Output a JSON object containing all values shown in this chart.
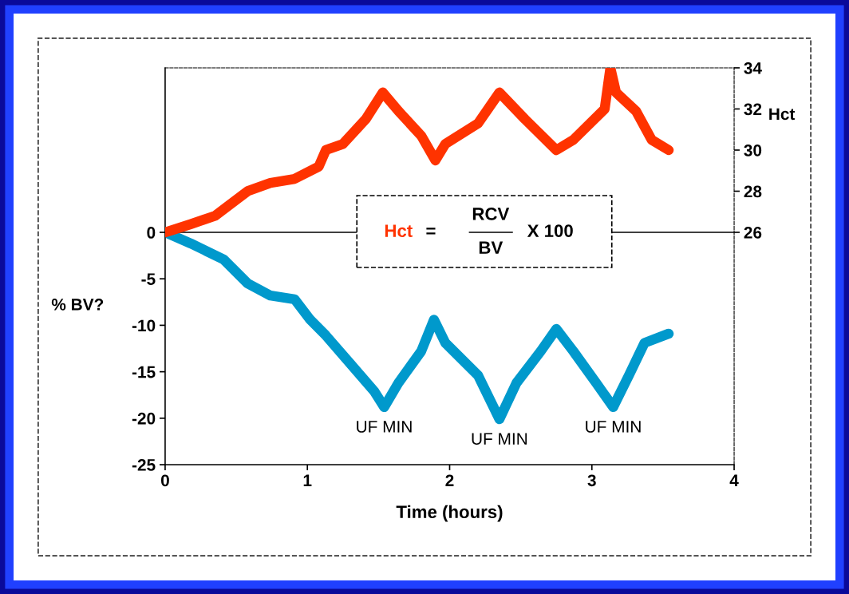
{
  "chart_data": {
    "type": "line",
    "xlabel": "Time (hours)",
    "ylabel": "% BV?",
    "y2label": "Hct",
    "xlim": [
      0,
      4
    ],
    "xticks": [
      0,
      1,
      2,
      3,
      4
    ],
    "ylim": [
      -25,
      17.7
    ],
    "yticks": [
      -25,
      -20,
      -15,
      -10,
      -5,
      0
    ],
    "y2lim": [
      14.7,
      34
    ],
    "y2ticks": [
      26,
      28,
      30,
      32,
      34
    ],
    "grid": false,
    "line_style": "solid",
    "ref_lines": [
      {
        "axis": "y",
        "value": 0,
        "color": "#000000"
      }
    ],
    "series": [
      {
        "color": "#ff3300",
        "axis": "y2",
        "x": [
          0,
          0.18,
          0.35,
          0.58,
          0.74,
          0.91,
          1.08,
          1.13,
          1.25,
          1.41,
          1.53,
          1.64,
          1.8,
          1.9,
          1.97,
          2.2,
          2.35,
          2.53,
          2.75,
          2.87,
          3.09,
          3.13,
          3.17,
          3.31,
          3.42,
          3.54
        ],
        "values": [
          26,
          26.4,
          26.8,
          28.0,
          28.4,
          28.6,
          29.2,
          30.0,
          30.3,
          31.5,
          32.8,
          31.9,
          30.7,
          29.5,
          30.3,
          31.3,
          32.8,
          31.5,
          30.0,
          30.5,
          32.0,
          34.0,
          32.8,
          31.9,
          30.5,
          30.0
        ]
      },
      {
        "color": "#0099cc",
        "axis": "y",
        "x": [
          0,
          0.18,
          0.41,
          0.58,
          0.74,
          0.91,
          1.02,
          1.13,
          1.3,
          1.47,
          1.54,
          1.64,
          1.8,
          1.89,
          1.97,
          2.2,
          2.35,
          2.47,
          2.64,
          2.75,
          2.87,
          3.03,
          3.15,
          3.26,
          3.37,
          3.54
        ],
        "values": [
          0,
          -1.2,
          -2.9,
          -5.5,
          -6.8,
          -7.2,
          -9.4,
          -11.1,
          -14.1,
          -17.1,
          -18.8,
          -16.2,
          -12.8,
          -9.4,
          -11.9,
          -15.4,
          -20.1,
          -16.2,
          -12.8,
          -10.4,
          -12.8,
          -16.2,
          -18.8,
          -15.4,
          -11.9,
          -10.9
        ]
      }
    ],
    "annotations": [
      "Hct",
      "=",
      "RCV",
      "BV",
      "X 100",
      {
        "text": "UF MIN",
        "x": 1.54,
        "y": -18.8
      },
      {
        "text": "UF MIN",
        "x": 2.35,
        "y": -20.1
      },
      {
        "text": "UF MIN",
        "x": 3.15,
        "y": -18.8
      }
    ]
  }
}
